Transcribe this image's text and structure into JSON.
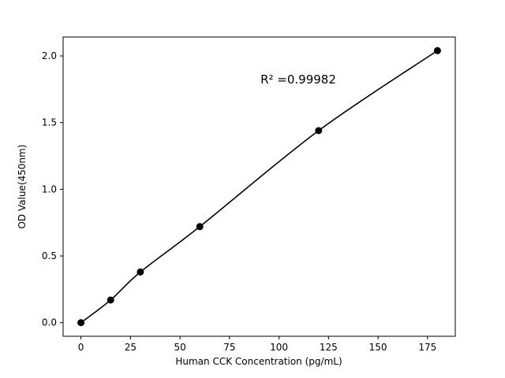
{
  "chart_data": {
    "type": "scatter",
    "title": "",
    "xlabel": "Human CCK Concentration (pg/mL)",
    "ylabel": "OD Value(450nm)",
    "x": [
      0,
      15,
      30,
      60,
      120,
      180
    ],
    "y": [
      0.0,
      0.17,
      0.38,
      0.72,
      1.44,
      2.04
    ],
    "xlim": [
      -9,
      189
    ],
    "ylim": [
      -0.102,
      2.142
    ],
    "xticks": [
      0,
      25,
      50,
      75,
      100,
      125,
      150,
      175
    ],
    "xtick_labels": [
      "0",
      "25",
      "50",
      "75",
      "100",
      "125",
      "150",
      "175"
    ],
    "yticks": [
      0.0,
      0.5,
      1.0,
      1.5,
      2.0
    ],
    "ytick_labels": [
      "0.0",
      "0.5",
      "1.0",
      "1.5",
      "2.0"
    ],
    "annotation": "R² =0.99982",
    "grid": false,
    "legend": null,
    "line_color": "#000000",
    "marker_color": "#000000",
    "frame_color": "#000000",
    "background_color": "#ffffff",
    "marker_radius": 4.5,
    "line_width": 1.6
  }
}
